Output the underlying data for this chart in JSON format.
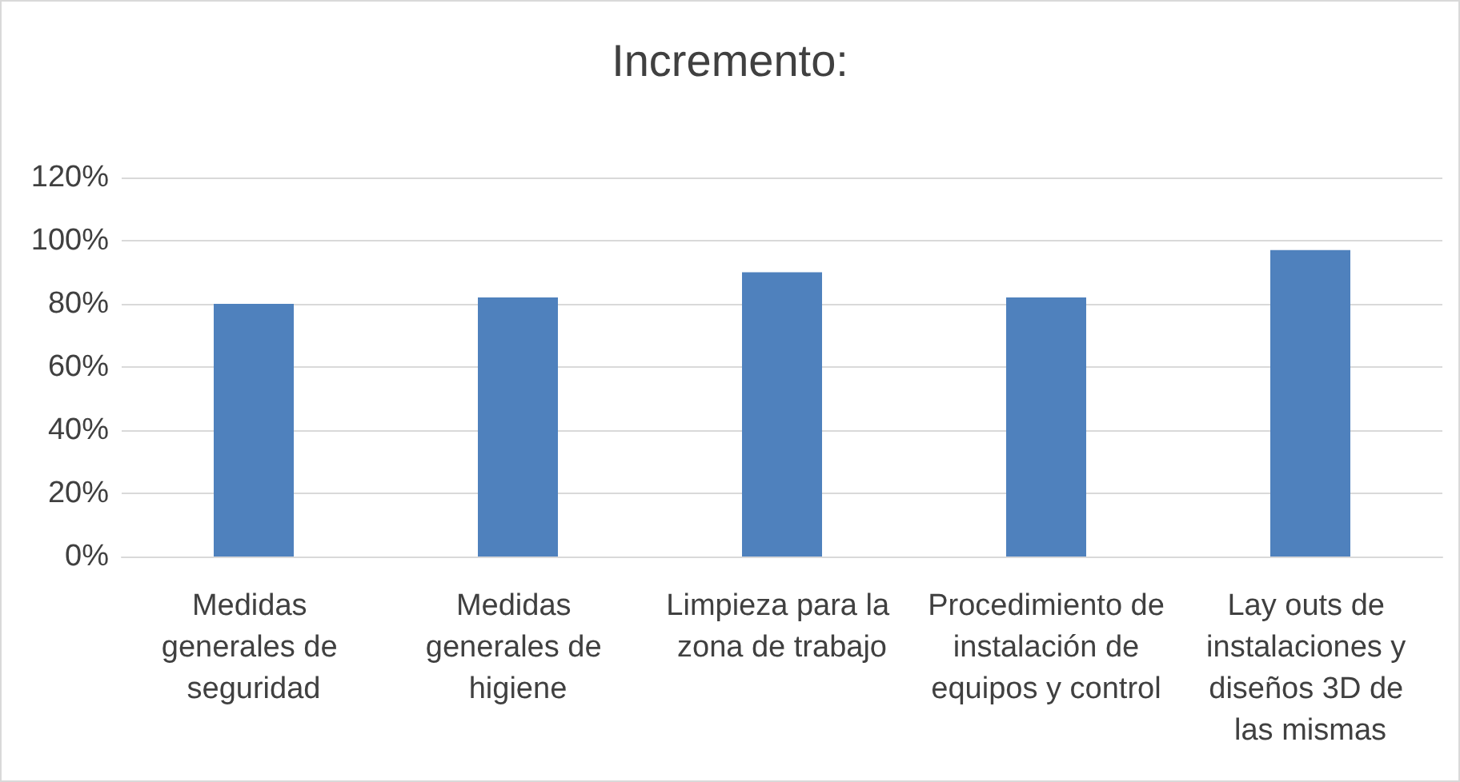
{
  "chart_data": {
    "type": "bar",
    "title": "Incremento:",
    "categories": [
      "Medidas generales de seguridad",
      "Medidas generales de higiene",
      "Limpieza para la zona de trabajo",
      "Procedimiento de instalación de equipos y control",
      "Lay outs de instalaciones y diseños 3D de las mismas"
    ],
    "values": [
      80,
      82,
      90,
      82,
      97
    ],
    "color": "#4f81bd",
    "ylim": [
      0,
      120
    ],
    "yticks": [
      {
        "value": 0,
        "label": "0%"
      },
      {
        "value": 20,
        "label": "20%"
      },
      {
        "value": 40,
        "label": "40%"
      },
      {
        "value": 60,
        "label": "60%"
      },
      {
        "value": 80,
        "label": "80%"
      },
      {
        "value": 100,
        "label": "100%"
      },
      {
        "value": 120,
        "label": "120%"
      }
    ],
    "grid": "y"
  }
}
